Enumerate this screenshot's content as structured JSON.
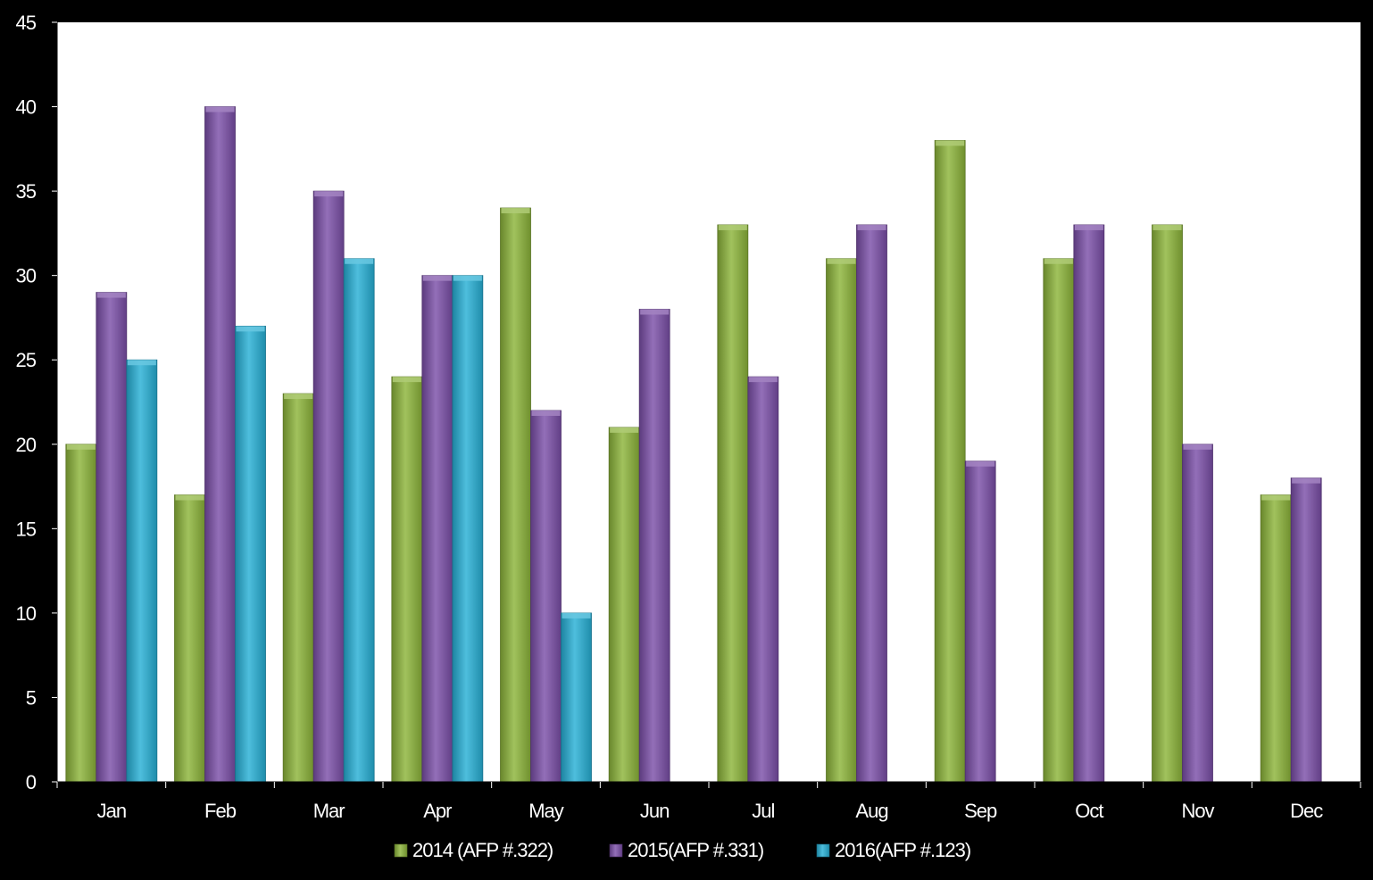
{
  "chart_data": {
    "type": "bar",
    "categories": [
      "Jan",
      "Feb",
      "Mar",
      "Apr",
      "May",
      "Jun",
      "Jul",
      "Aug",
      "Sep",
      "Oct",
      "Nov",
      "Dec"
    ],
    "series": [
      {
        "name": "2014 (AFP #.322)",
        "color": "#8cb43a",
        "values": [
          20,
          17,
          23,
          24,
          34,
          21,
          33,
          31,
          38,
          31,
          33,
          17
        ]
      },
      {
        "name": "2015(AFP #.331)",
        "color": "#7b4fa8",
        "values": [
          29,
          40,
          35,
          30,
          22,
          28,
          24,
          33,
          19,
          33,
          20,
          18
        ]
      },
      {
        "name": "2016(AFP #.123)",
        "color": "#27b0d6",
        "values": [
          25,
          27,
          31,
          30,
          10,
          null,
          null,
          null,
          null,
          null,
          null,
          null
        ]
      }
    ],
    "ylim": [
      0,
      45
    ],
    "yticks": [
      0,
      5,
      10,
      15,
      20,
      25,
      30,
      35,
      40,
      45
    ],
    "grid": false,
    "legend": "bottom",
    "title": "",
    "xlabel": "",
    "ylabel": ""
  }
}
